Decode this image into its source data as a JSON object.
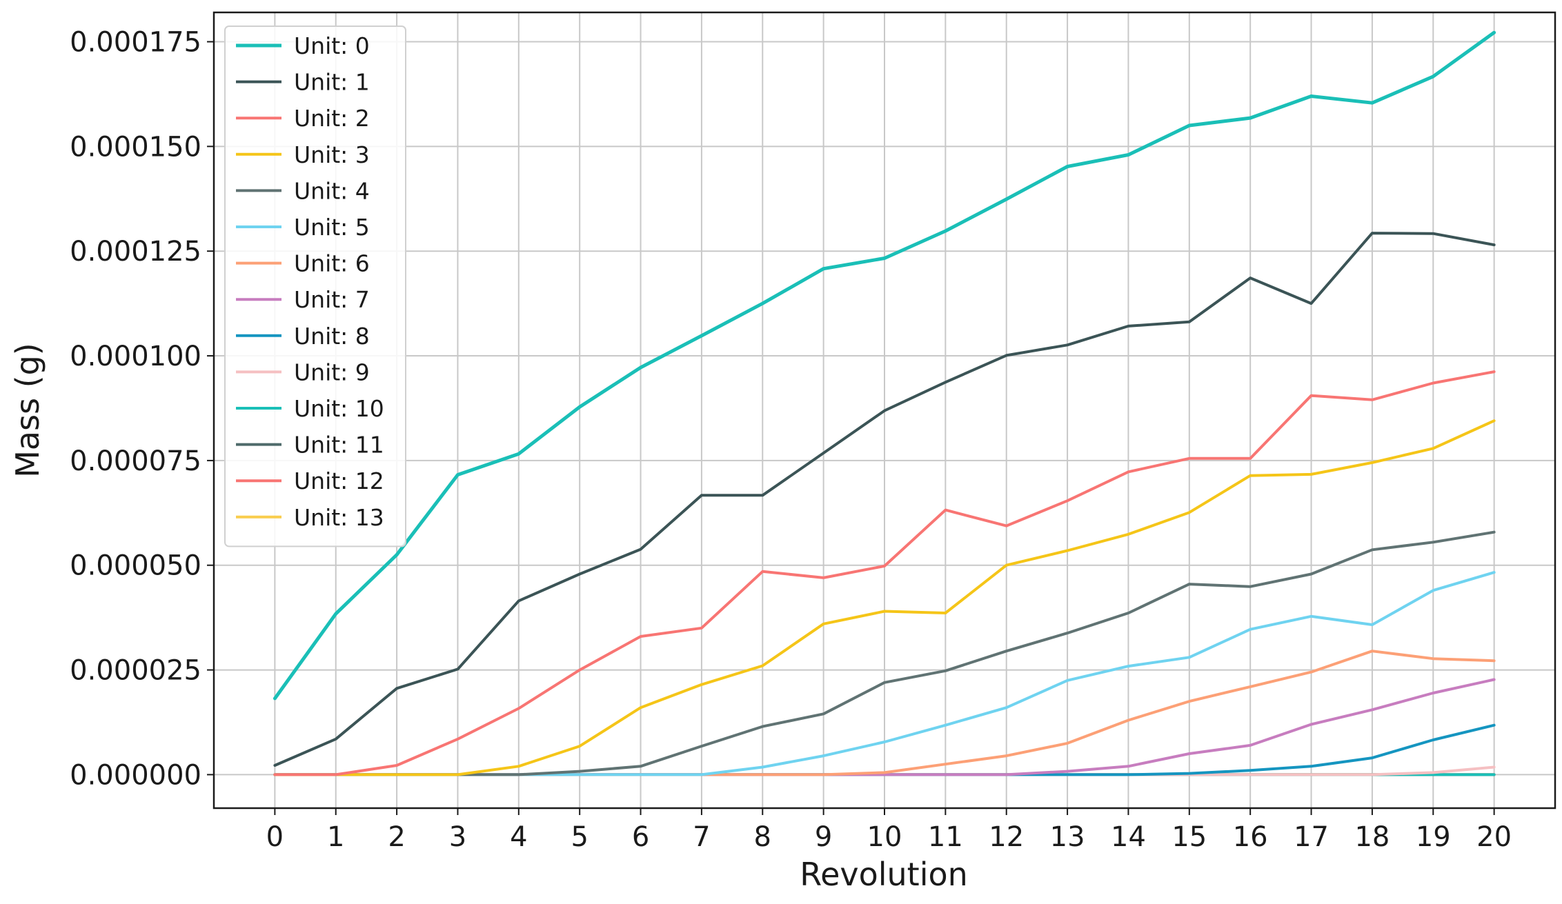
{
  "chart_data": {
    "type": "line",
    "xlabel": "Revolution",
    "ylabel": "Mass (g)",
    "x": [
      0,
      1,
      2,
      3,
      4,
      5,
      6,
      7,
      8,
      9,
      10,
      11,
      12,
      13,
      14,
      15,
      16,
      17,
      18,
      19,
      20
    ],
    "xlim": [
      -1,
      21
    ],
    "ylim": [
      -8e-06,
      0.000182
    ],
    "yticks": [
      0,
      2.5e-05,
      5e-05,
      7.5e-05,
      0.0001,
      0.000125,
      0.00015,
      0.000175
    ],
    "ytick_labels": [
      "0.000000",
      "0.000025",
      "0.000050",
      "0.000075",
      "0.000100",
      "0.000125",
      "0.000150",
      "0.000175"
    ],
    "grid": true,
    "legend_position": "top-left",
    "series": [
      {
        "name": "Unit: 0",
        "color": "#1abfb7",
        "width": 5,
        "values": [
          1.82e-05,
          3.84e-05,
          5.25e-05,
          7.16e-05,
          7.66e-05,
          8.78e-05,
          9.72e-05,
          0.0001048,
          0.0001125,
          0.0001208,
          0.0001233,
          0.0001298,
          0.0001374,
          0.0001452,
          0.000148,
          0.000155,
          0.0001568,
          0.000162,
          0.0001604,
          0.0001667,
          0.0001772
        ]
      },
      {
        "name": "Unit: 1",
        "color": "#3b5456",
        "width": 4,
        "values": [
          2.2e-06,
          8.5e-06,
          2.06e-05,
          2.52e-05,
          4.15e-05,
          4.79e-05,
          5.38e-05,
          6.67e-05,
          6.67e-05,
          7.68e-05,
          8.69e-05,
          9.37e-05,
          0.0001001,
          0.0001026,
          0.0001071,
          0.0001081,
          0.0001186,
          0.0001125,
          0.0001293,
          0.0001292,
          0.0001265
        ]
      },
      {
        "name": "Unit: 2",
        "color": "#f87573",
        "width": 4,
        "values": [
          0,
          0,
          2.2e-06,
          8.5e-06,
          1.58e-05,
          2.5e-05,
          3.3e-05,
          3.5e-05,
          4.85e-05,
          4.7e-05,
          4.98e-05,
          6.32e-05,
          5.94e-05,
          6.54e-05,
          7.23e-05,
          7.55e-05,
          7.55e-05,
          9.05e-05,
          8.95e-05,
          9.35e-05,
          9.62e-05
        ]
      },
      {
        "name": "Unit: 3",
        "color": "#f5c518",
        "width": 4,
        "values": [
          0,
          0,
          0,
          0,
          2e-06,
          6.8e-06,
          1.6e-05,
          2.15e-05,
          2.6e-05,
          3.6e-05,
          3.9e-05,
          3.86e-05,
          5e-05,
          5.35e-05,
          5.74e-05,
          6.26e-05,
          7.14e-05,
          7.17e-05,
          7.45e-05,
          7.79e-05,
          8.45e-05
        ]
      },
      {
        "name": "Unit: 4",
        "color": "#607373",
        "width": 4,
        "values": [
          0,
          0,
          0,
          0,
          0,
          8e-07,
          2e-06,
          6.8e-06,
          1.15e-05,
          1.45e-05,
          2.2e-05,
          2.48e-05,
          2.95e-05,
          3.38e-05,
          3.86e-05,
          4.55e-05,
          4.49e-05,
          4.79e-05,
          5.37e-05,
          5.55e-05,
          5.79e-05
        ]
      },
      {
        "name": "Unit: 5",
        "color": "#6fd3f0",
        "width": 4,
        "values": [
          0,
          0,
          0,
          0,
          0,
          0,
          0,
          0,
          1.8e-06,
          4.5e-06,
          7.8e-06,
          1.18e-05,
          1.6e-05,
          2.25e-05,
          2.59e-05,
          2.8e-05,
          3.47e-05,
          3.78e-05,
          3.58e-05,
          4.4e-05,
          4.83e-05
        ]
      },
      {
        "name": "Unit: 6",
        "color": "#fca076",
        "width": 4,
        "values": [
          0,
          0,
          0,
          0,
          0,
          0,
          0,
          0,
          0,
          0,
          5e-07,
          2.5e-06,
          4.5e-06,
          7.5e-06,
          1.3e-05,
          1.75e-05,
          2.1e-05,
          2.45e-05,
          2.95e-05,
          2.77e-05,
          2.72e-05
        ]
      },
      {
        "name": "Unit: 7",
        "color": "#c77dbf",
        "width": 4,
        "values": [
          0,
          0,
          0,
          0,
          0,
          0,
          0,
          0,
          0,
          0,
          0,
          0,
          0,
          8e-07,
          2e-06,
          5e-06,
          7e-06,
          1.2e-05,
          1.55e-05,
          1.95e-05,
          2.27e-05
        ]
      },
      {
        "name": "Unit: 8",
        "color": "#1595c0",
        "width": 4,
        "values": [
          0,
          0,
          0,
          0,
          0,
          0,
          0,
          0,
          0,
          0,
          0,
          0,
          0,
          0,
          0,
          3e-07,
          1e-06,
          2e-06,
          4e-06,
          8.3e-06,
          1.18e-05
        ]
      },
      {
        "name": "Unit: 9",
        "color": "#f5c0c2",
        "width": 4,
        "values": [
          0,
          0,
          0,
          0,
          0,
          0,
          0,
          0,
          0,
          0,
          0,
          0,
          0,
          0,
          0,
          0,
          0,
          0,
          0,
          5e-07,
          1.8e-06
        ]
      },
      {
        "name": "Unit: 10",
        "color": "#1abfb7",
        "width": 4,
        "values": [
          0,
          0,
          0,
          0,
          0,
          0,
          0,
          0,
          0,
          0,
          0,
          0,
          0,
          0,
          0,
          0,
          0,
          0,
          0,
          0,
          0
        ]
      },
      {
        "name": "Unit: 11",
        "color": "#4f6b6b",
        "width": 4,
        "values": [
          0,
          0,
          0,
          0,
          0,
          0,
          0,
          0,
          0,
          0,
          0,
          0,
          0,
          0,
          0,
          0,
          0,
          0,
          0,
          0,
          0
        ]
      },
      {
        "name": "Unit: 12",
        "color": "#f87573",
        "width": 4,
        "values": [
          0,
          0,
          0,
          0,
          0,
          0,
          0,
          0,
          0,
          0,
          0,
          0,
          0,
          0,
          0,
          0,
          0,
          0,
          0,
          0,
          0
        ]
      },
      {
        "name": "Unit: 13",
        "color": "#f9cd4d",
        "width": 4,
        "values": [
          0,
          0,
          0,
          0,
          0,
          0,
          0,
          0,
          0,
          0,
          0,
          0,
          0,
          0,
          0,
          0,
          0,
          0,
          0,
          0,
          0
        ]
      }
    ]
  }
}
